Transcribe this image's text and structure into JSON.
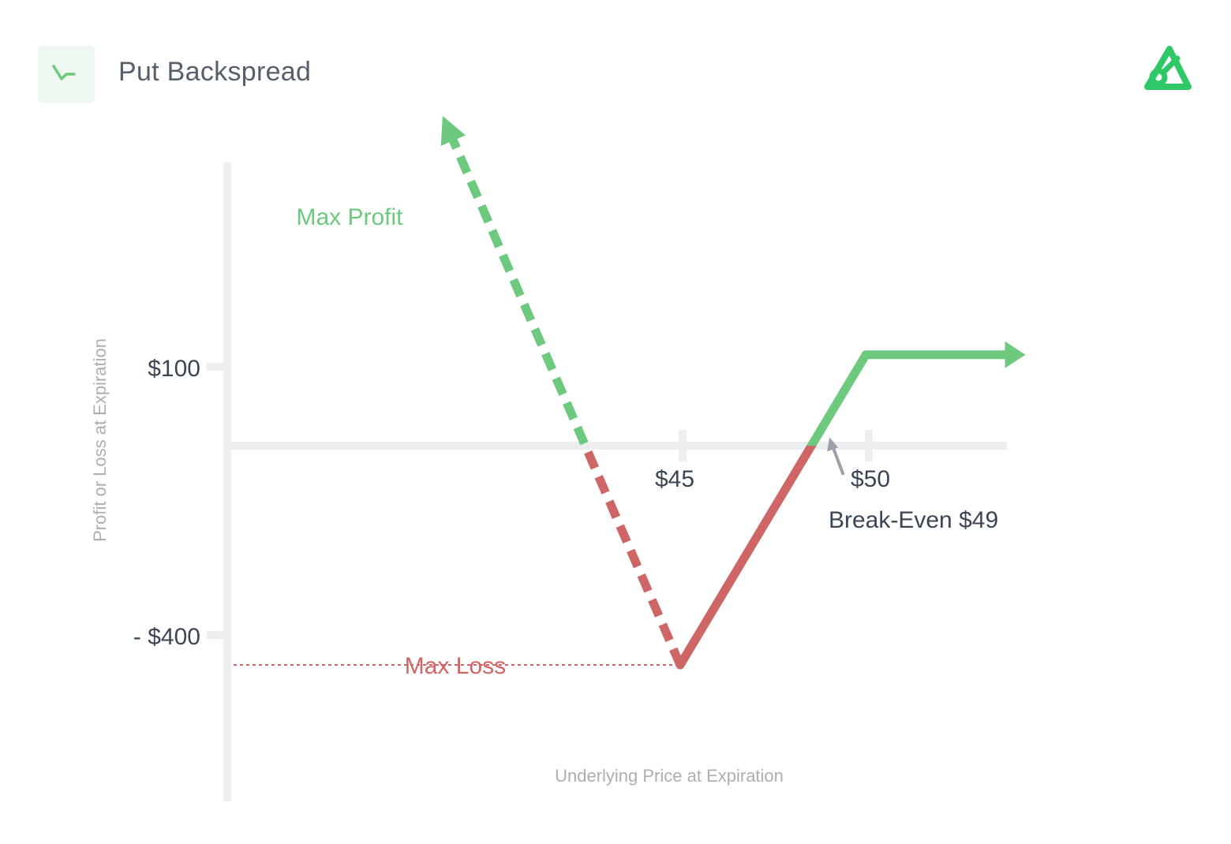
{
  "header": {
    "title": "Put Backspread",
    "badge_icon": "trending-down-up-icon",
    "logo_icon": "brand-logo-icon",
    "accent_color": "#2ec866"
  },
  "chart_data": {
    "type": "line",
    "xlabel": "Underlying Price at Expiration",
    "ylabel": "Profit or Loss at Expiration",
    "x_ticks": [
      {
        "value": 45,
        "label": "$45"
      },
      {
        "value": 50,
        "label": "$50"
      }
    ],
    "y_ticks": [
      {
        "value": 100,
        "label": "$100"
      },
      {
        "value": -400,
        "label": "- $400"
      }
    ],
    "xlim": [
      32.8,
      53.8
    ],
    "ylim": [
      -620,
      410
    ],
    "payoff": [
      {
        "x": 38.6,
        "y": 485
      },
      {
        "x": 45,
        "y": -400
      },
      {
        "x": 50,
        "y": 100
      },
      {
        "x": 54.3,
        "y": 100
      }
    ],
    "break_even": {
      "x": 49,
      "y": 0
    },
    "annotations": {
      "max_profit": "Max Profit",
      "max_loss": "Max Loss",
      "break_even": "Break-Even $49"
    },
    "colors": {
      "profit": "#6cc97e",
      "loss": "#cf6666",
      "axis": "#eceef0",
      "tick_text": "#3a4656",
      "axis_title": "#a9afb5",
      "break_even_arrow": "#9aa1a9"
    },
    "grid": false,
    "legend": "none"
  }
}
